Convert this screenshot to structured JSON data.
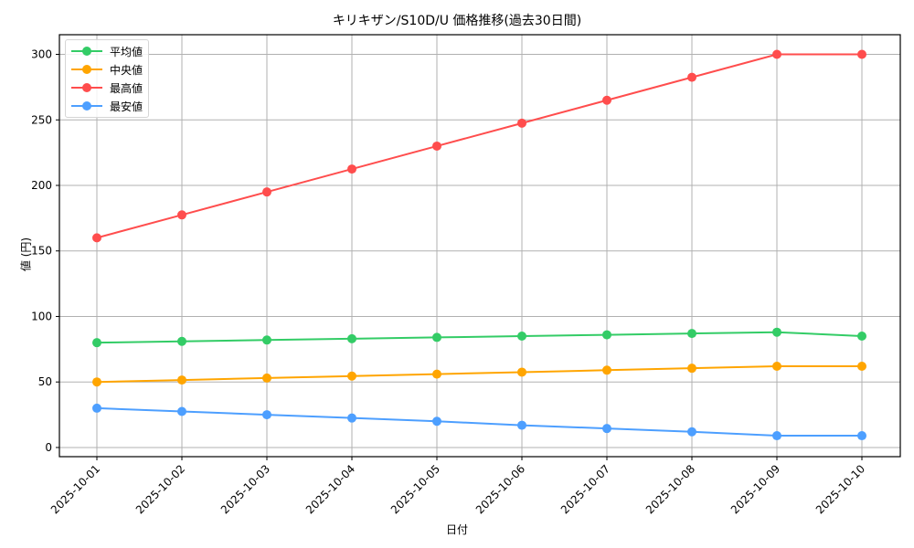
{
  "chart_data": {
    "type": "line",
    "title": "キリキザン/S10D/U 価格推移(過去30日間)",
    "xlabel": "日付",
    "ylabel": "値 (円)",
    "categories": [
      "2025-10-01",
      "2025-10-02",
      "2025-10-03",
      "2025-10-04",
      "2025-10-05",
      "2025-10-06",
      "2025-10-07",
      "2025-10-08",
      "2025-10-09",
      "2025-10-10"
    ],
    "series": [
      {
        "name": "平均値",
        "color": "#33cc66",
        "values": [
          80,
          81,
          82,
          83,
          84,
          85,
          86,
          87,
          88,
          85
        ]
      },
      {
        "name": "中央値",
        "color": "#ffa500",
        "values": [
          50,
          51.5,
          53,
          54.5,
          56,
          57.5,
          59,
          60.5,
          62,
          62
        ]
      },
      {
        "name": "最高値",
        "color": "#ff4d4d",
        "values": [
          160,
          177.5,
          195,
          212.5,
          230,
          247.5,
          265,
          282.5,
          300,
          300
        ]
      },
      {
        "name": "最安値",
        "color": "#4d9fff",
        "values": [
          30,
          27.5,
          25,
          22.5,
          20,
          17,
          14.5,
          12,
          9,
          9
        ]
      }
    ],
    "yticks": [
      0,
      50,
      100,
      150,
      200,
      250,
      300
    ],
    "ylim": [
      -7,
      315
    ],
    "grid": true,
    "legend_position": "upper left",
    "marker": "circle"
  }
}
